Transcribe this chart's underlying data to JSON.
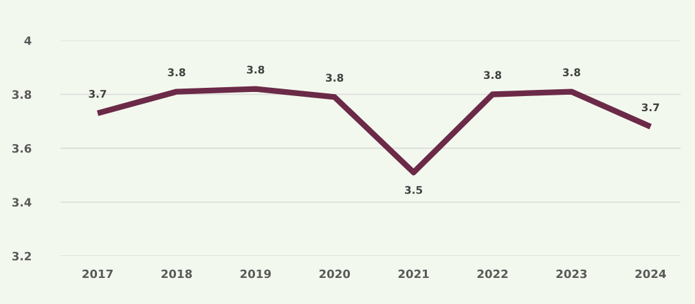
{
  "chart_data": {
    "type": "line",
    "categories": [
      "2017",
      "2018",
      "2019",
      "2020",
      "2021",
      "2022",
      "2023",
      "2024"
    ],
    "series": [
      {
        "color": "#6b2a47",
        "values": [
          3.73,
          3.81,
          3.82,
          3.79,
          3.51,
          3.8,
          3.81,
          3.68
        ],
        "value_labels": [
          "3.7",
          "3.8",
          "3.8",
          "3.8",
          "3.5",
          "3.8",
          "3.8",
          "3.7"
        ]
      }
    ],
    "ylim": [
      3.2,
      4
    ],
    "yticks": [
      3.2,
      3.4,
      3.6,
      3.8,
      4
    ],
    "grid": "y",
    "marker": "none",
    "line_style": "solid",
    "legend": false
  }
}
